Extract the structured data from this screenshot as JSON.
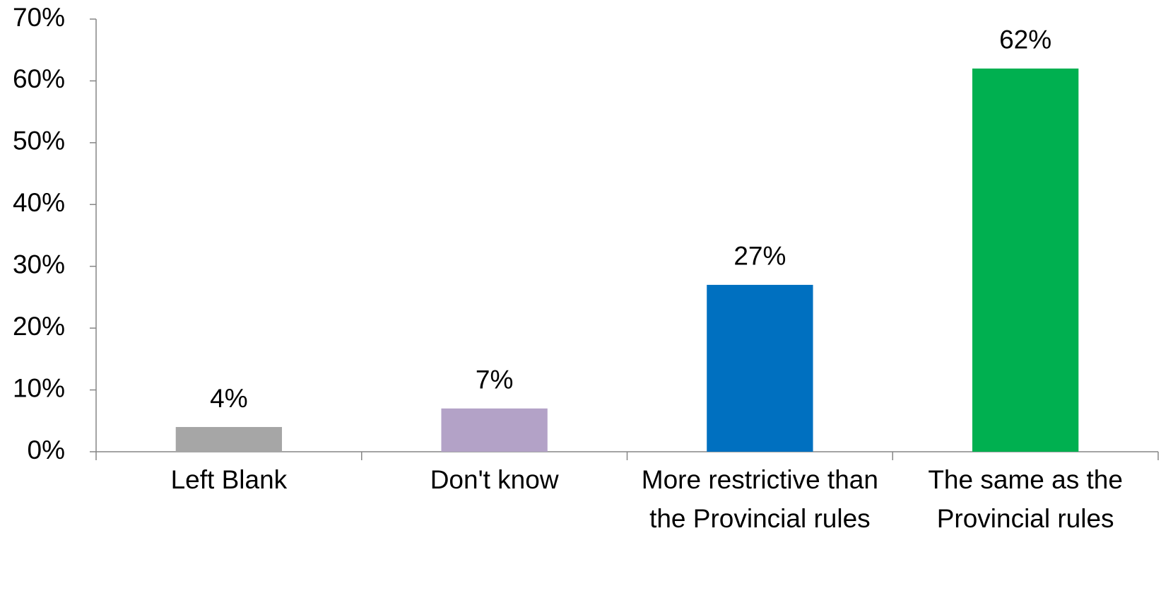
{
  "chart_data": {
    "type": "bar",
    "categories": [
      "Left Blank",
      "Don't know",
      "More restrictive than the Provincial rules",
      "The same as the Provincial rules"
    ],
    "values": [
      4,
      7,
      27,
      62
    ],
    "value_labels": [
      "4%",
      "7%",
      "27%",
      "62%"
    ],
    "colors": [
      "#a6a6a6",
      "#b3a2c7",
      "#0070c0",
      "#00b050"
    ],
    "ylim": [
      0,
      70
    ],
    "yticks": [
      {
        "value": 0,
        "label": "0%"
      },
      {
        "value": 10,
        "label": "10%"
      },
      {
        "value": 20,
        "label": "20%"
      },
      {
        "value": 30,
        "label": "30%"
      },
      {
        "value": 40,
        "label": "40%"
      },
      {
        "value": 50,
        "label": "50%"
      },
      {
        "value": 60,
        "label": "60%"
      },
      {
        "value": 70,
        "label": "70%"
      }
    ],
    "grid": false
  }
}
